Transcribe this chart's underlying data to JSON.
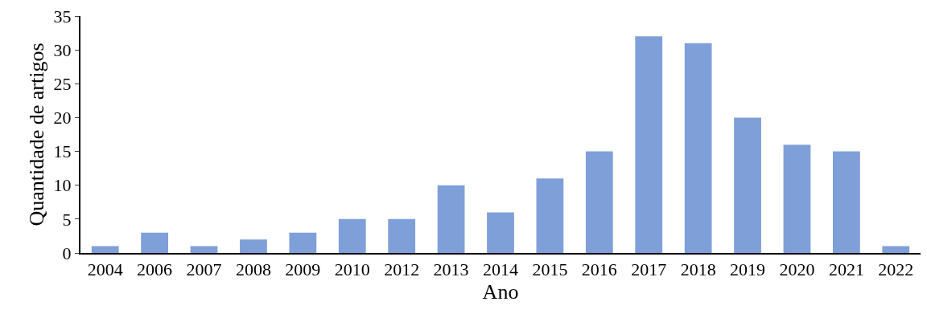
{
  "chart_data": {
    "type": "bar",
    "xlabel": "Ano",
    "ylabel": "Quantidade de artigos",
    "categories": [
      "2004",
      "2006",
      "2007",
      "2008",
      "2009",
      "2010",
      "2012",
      "2013",
      "2014",
      "2015",
      "2016",
      "2017",
      "2018",
      "2019",
      "2020",
      "2021",
      "2022"
    ],
    "values": [
      1,
      3,
      1,
      2,
      3,
      5,
      5,
      10,
      6,
      11,
      15,
      32,
      31,
      20,
      16,
      15,
      1
    ],
    "color": "#7f9fd9",
    "ylim": [
      0,
      35
    ],
    "yticks": [
      0,
      5,
      10,
      15,
      20,
      25,
      30,
      35
    ]
  }
}
